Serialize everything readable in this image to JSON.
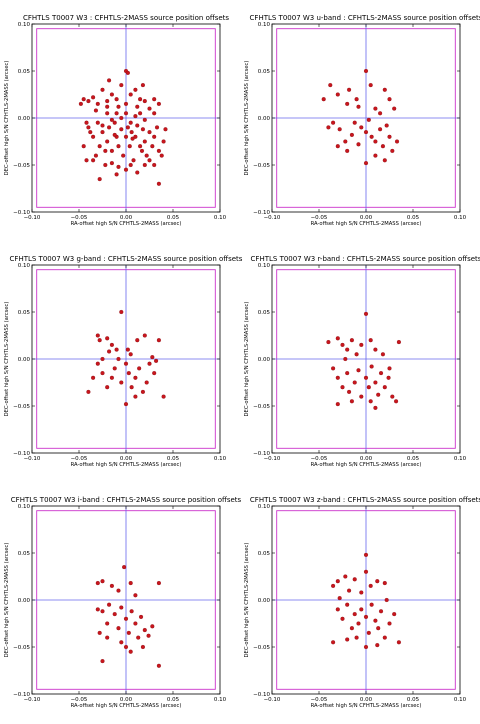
{
  "chart_data": [
    {
      "type": "scatter",
      "title": "CFHTLS T0007 W3 : CFHTLS-2MASS source position offsets",
      "xlabel": "RA-offset high S/N CFHTLS-2MASS (arcsec)",
      "ylabel": "DEC-offset high S/N CFHTLS-2MASS (arcsec)",
      "xlim": [
        -0.1,
        0.1
      ],
      "ylim": [
        -0.1,
        0.1
      ],
      "xticks": [
        "−0.10",
        "−0.05",
        "0.00",
        "0.05",
        "0.10"
      ],
      "yticks": [
        "−0.10",
        "−0.05",
        "0.00",
        "0.05",
        "0.10"
      ],
      "box": 0.095,
      "points": [
        [
          -0.045,
          0.02
        ],
        [
          -0.04,
          0.018
        ],
        [
          -0.035,
          0.022
        ],
        [
          -0.03,
          0.015
        ],
        [
          -0.025,
          0.03
        ],
        [
          -0.02,
          0.018
        ],
        [
          -0.02,
          0.012
        ],
        [
          -0.015,
          0.025
        ],
        [
          -0.01,
          0.02
        ],
        [
          -0.005,
          0.035
        ],
        [
          0.0,
          0.05
        ],
        [
          0.002,
          0.048
        ],
        [
          0.01,
          0.03
        ],
        [
          0.015,
          0.02
        ],
        [
          0.02,
          0.018
        ],
        [
          0.025,
          0.01
        ],
        [
          0.03,
          0.02
        ],
        [
          0.035,
          0.015
        ],
        [
          -0.04,
          -0.01
        ],
        [
          -0.035,
          -0.02
        ],
        [
          -0.03,
          -0.005
        ],
        [
          -0.028,
          -0.03
        ],
        [
          -0.025,
          -0.015
        ],
        [
          -0.02,
          -0.025
        ],
        [
          -0.018,
          -0.01
        ],
        [
          -0.015,
          -0.035
        ],
        [
          -0.012,
          -0.005
        ],
        [
          -0.01,
          -0.02
        ],
        [
          -0.008,
          -0.03
        ],
        [
          -0.005,
          -0.012
        ],
        [
          -0.003,
          -0.04
        ],
        [
          0.0,
          -0.02
        ],
        [
          0.002,
          -0.01
        ],
        [
          0.004,
          -0.03
        ],
        [
          0.006,
          -0.015
        ],
        [
          0.008,
          -0.045
        ],
        [
          0.01,
          -0.02
        ],
        [
          0.012,
          -0.008
        ],
        [
          0.015,
          -0.03
        ],
        [
          0.018,
          -0.012
        ],
        [
          0.02,
          -0.025
        ],
        [
          0.022,
          -0.04
        ],
        [
          0.025,
          -0.015
        ],
        [
          0.028,
          -0.03
        ],
        [
          0.03,
          -0.02
        ],
        [
          0.033,
          -0.01
        ],
        [
          0.035,
          -0.035
        ],
        [
          0.038,
          -0.04
        ],
        [
          -0.045,
          -0.03
        ],
        [
          -0.042,
          -0.045
        ],
        [
          -0.038,
          -0.015
        ],
        [
          -0.032,
          -0.04
        ],
        [
          -0.022,
          -0.05
        ],
        [
          -0.015,
          -0.048
        ],
        [
          -0.008,
          -0.052
        ],
        [
          0.0,
          -0.055
        ],
        [
          0.005,
          -0.05
        ],
        [
          0.012,
          -0.058
        ],
        [
          0.02,
          -0.05
        ],
        [
          0.03,
          -0.05
        ],
        [
          -0.028,
          -0.065
        ],
        [
          0.035,
          -0.07
        ],
        [
          -0.01,
          0.005
        ],
        [
          -0.005,
          0.0
        ],
        [
          0.0,
          0.005
        ],
        [
          0.005,
          -0.005
        ],
        [
          0.01,
          0.002
        ],
        [
          -0.015,
          -0.002
        ],
        [
          0.015,
          0.005
        ],
        [
          -0.02,
          0.005
        ],
        [
          0.02,
          -0.002
        ],
        [
          -0.025,
          -0.008
        ],
        [
          -0.012,
          -0.018
        ],
        [
          0.007,
          -0.022
        ],
        [
          0.017,
          -0.035
        ],
        [
          -0.022,
          -0.035
        ],
        [
          0.025,
          -0.045
        ],
        [
          -0.035,
          -0.045
        ],
        [
          0.0,
          0.015
        ],
        [
          0.005,
          0.025
        ],
        [
          -0.008,
          0.012
        ],
        [
          0.012,
          0.012
        ],
        [
          0.03,
          0.005
        ],
        [
          -0.032,
          0.008
        ],
        [
          0.04,
          -0.025
        ],
        [
          -0.042,
          -0.005
        ],
        [
          0.042,
          -0.012
        ],
        [
          -0.018,
          0.04
        ],
        [
          0.018,
          0.035
        ],
        [
          -0.048,
          0.015
        ],
        [
          -0.01,
          -0.06
        ]
      ]
    },
    {
      "type": "scatter",
      "title": "CFHTLS T0007 W3 u-band : CFHTLS-2MASS source position offsets",
      "xlabel": "RA-offset high S/N CFHTLS-2MASS (arcsec)",
      "ylabel": "DEC-offset high S/N CFHTLS-2MASS (arcsec)",
      "xlim": [
        -0.1,
        0.1
      ],
      "ylim": [
        -0.1,
        0.1
      ],
      "xticks": [
        "−0.10",
        "−0.05",
        "0.00",
        "0.05",
        "0.10"
      ],
      "yticks": [
        "−0.10",
        "−0.05",
        "0.00",
        "0.05",
        "0.10"
      ],
      "box": 0.095,
      "points": [
        [
          -0.045,
          0.02
        ],
        [
          -0.038,
          0.035
        ],
        [
          -0.03,
          0.025
        ],
        [
          -0.02,
          0.015
        ],
        [
          -0.018,
          0.03
        ],
        [
          -0.01,
          0.02
        ],
        [
          -0.008,
          0.012
        ],
        [
          0.0,
          0.05
        ],
        [
          0.005,
          0.035
        ],
        [
          0.01,
          0.01
        ],
        [
          0.015,
          0.005
        ],
        [
          0.02,
          0.03
        ],
        [
          0.025,
          0.02
        ],
        [
          0.03,
          0.01
        ],
        [
          -0.035,
          -0.005
        ],
        [
          -0.028,
          -0.012
        ],
        [
          -0.022,
          -0.025
        ],
        [
          -0.015,
          -0.018
        ],
        [
          -0.012,
          -0.005
        ],
        [
          -0.008,
          -0.028
        ],
        [
          -0.005,
          -0.01
        ],
        [
          0.0,
          -0.015
        ],
        [
          0.003,
          -0.002
        ],
        [
          0.006,
          -0.02
        ],
        [
          0.01,
          -0.025
        ],
        [
          0.015,
          -0.012
        ],
        [
          0.018,
          -0.03
        ],
        [
          0.022,
          -0.008
        ],
        [
          0.025,
          -0.02
        ],
        [
          0.028,
          -0.035
        ],
        [
          0.033,
          -0.025
        ],
        [
          -0.03,
          -0.03
        ],
        [
          -0.02,
          -0.035
        ],
        [
          0.0,
          -0.048
        ],
        [
          0.01,
          -0.04
        ],
        [
          0.02,
          -0.045
        ],
        [
          -0.04,
          -0.01
        ]
      ]
    },
    {
      "type": "scatter",
      "title": "CFHTLS T0007 W3 g-band : CFHTLS-2MASS source position offsets",
      "xlabel": "RA-offset high S/N CFHTLS-2MASS (arcsec)",
      "ylabel": "DEC-offset high S/N CFHTLS-2MASS (arcsec)",
      "xlim": [
        -0.1,
        0.1
      ],
      "ylim": [
        -0.1,
        0.1
      ],
      "xticks": [
        "−0.10",
        "−0.05",
        "0.00",
        "0.05",
        "0.10"
      ],
      "yticks": [
        "−0.10",
        "−0.05",
        "0.00",
        "0.05",
        "0.10"
      ],
      "box": 0.095,
      "points": [
        [
          -0.03,
          0.025
        ],
        [
          -0.028,
          0.02
        ],
        [
          -0.02,
          0.022
        ],
        [
          -0.015,
          0.015
        ],
        [
          -0.01,
          0.01
        ],
        [
          -0.005,
          0.05
        ],
        [
          0.002,
          0.01
        ],
        [
          0.005,
          0.005
        ],
        [
          0.012,
          0.02
        ],
        [
          0.02,
          0.025
        ],
        [
          0.035,
          0.02
        ],
        [
          -0.04,
          -0.035
        ],
        [
          -0.035,
          -0.02
        ],
        [
          -0.03,
          -0.005
        ],
        [
          -0.025,
          -0.015
        ],
        [
          -0.02,
          -0.03
        ],
        [
          -0.015,
          -0.02
        ],
        [
          -0.012,
          -0.01
        ],
        [
          -0.008,
          0.0
        ],
        [
          -0.005,
          -0.025
        ],
        [
          0.0,
          -0.005
        ],
        [
          0.003,
          -0.015
        ],
        [
          0.006,
          -0.03
        ],
        [
          0.01,
          -0.02
        ],
        [
          0.014,
          -0.01
        ],
        [
          0.018,
          -0.035
        ],
        [
          0.022,
          -0.025
        ],
        [
          0.025,
          -0.005
        ],
        [
          0.03,
          -0.015
        ],
        [
          0.04,
          -0.04
        ],
        [
          0.0,
          -0.048
        ],
        [
          0.01,
          -0.04
        ],
        [
          -0.025,
          0.0
        ],
        [
          0.028,
          0.002
        ],
        [
          0.032,
          -0.002
        ],
        [
          -0.018,
          0.008
        ]
      ]
    },
    {
      "type": "scatter",
      "title": "CFHTLS T0007 W3 r-band : CFHTLS-2MASS source position offsets",
      "xlabel": "RA-offset high S/N CFHTLS-2MASS (arcsec)",
      "ylabel": "DEC-offset high S/N CFHTLS-2MASS (arcsec)",
      "xlim": [
        -0.1,
        0.1
      ],
      "ylim": [
        -0.1,
        0.1
      ],
      "xticks": [
        "−0.10",
        "−0.05",
        "0.00",
        "0.05",
        "0.10"
      ],
      "yticks": [
        "−0.10",
        "−0.05",
        "0.00",
        "0.05",
        "0.10"
      ],
      "box": 0.095,
      "points": [
        [
          -0.04,
          0.018
        ],
        [
          -0.03,
          0.022
        ],
        [
          -0.025,
          0.015
        ],
        [
          -0.02,
          0.01
        ],
        [
          -0.015,
          0.02
        ],
        [
          -0.01,
          0.005
        ],
        [
          -0.005,
          0.015
        ],
        [
          0.0,
          0.048
        ],
        [
          0.005,
          0.02
        ],
        [
          0.01,
          0.01
        ],
        [
          0.018,
          0.005
        ],
        [
          0.035,
          0.018
        ],
        [
          -0.035,
          -0.01
        ],
        [
          -0.03,
          -0.02
        ],
        [
          -0.025,
          -0.03
        ],
        [
          -0.02,
          -0.015
        ],
        [
          -0.018,
          -0.035
        ],
        [
          -0.012,
          -0.025
        ],
        [
          -0.008,
          -0.012
        ],
        [
          -0.005,
          -0.04
        ],
        [
          0.0,
          -0.02
        ],
        [
          0.003,
          -0.03
        ],
        [
          0.006,
          -0.008
        ],
        [
          0.01,
          -0.025
        ],
        [
          0.013,
          -0.038
        ],
        [
          0.016,
          -0.015
        ],
        [
          0.02,
          -0.03
        ],
        [
          0.024,
          -0.02
        ],
        [
          0.028,
          -0.04
        ],
        [
          0.032,
          -0.045
        ],
        [
          -0.03,
          -0.048
        ],
        [
          0.01,
          -0.052
        ],
        [
          0.005,
          -0.045
        ],
        [
          -0.015,
          -0.045
        ],
        [
          0.025,
          -0.01
        ],
        [
          -0.022,
          0.0
        ]
      ]
    },
    {
      "type": "scatter",
      "title": "CFHTLS T0007 W3 i-band : CFHTLS-2MASS source position offsets",
      "xlabel": "RA-offset high S/N CFHTLS-2MASS (arcsec)",
      "ylabel": "DEC-offset high S/N CFHTLS-2MASS (arcsec)",
      "xlim": [
        -0.1,
        0.1
      ],
      "ylim": [
        -0.1,
        0.1
      ],
      "xticks": [
        "−0.10",
        "−0.05",
        "0.00",
        "0.05",
        "0.10"
      ],
      "yticks": [
        "−0.10",
        "−0.05",
        "0.00",
        "0.05",
        "0.10"
      ],
      "box": 0.095,
      "points": [
        [
          -0.03,
          0.018
        ],
        [
          -0.025,
          0.02
        ],
        [
          -0.015,
          0.015
        ],
        [
          -0.008,
          0.01
        ],
        [
          -0.002,
          0.035
        ],
        [
          0.005,
          0.018
        ],
        [
          0.01,
          0.005
        ],
        [
          0.035,
          0.018
        ],
        [
          -0.03,
          -0.01
        ],
        [
          -0.025,
          -0.012
        ],
        [
          -0.02,
          -0.025
        ],
        [
          -0.018,
          -0.005
        ],
        [
          -0.012,
          -0.015
        ],
        [
          -0.008,
          -0.03
        ],
        [
          -0.005,
          -0.008
        ],
        [
          0.0,
          -0.02
        ],
        [
          0.003,
          -0.035
        ],
        [
          0.006,
          -0.012
        ],
        [
          0.01,
          -0.025
        ],
        [
          0.013,
          -0.04
        ],
        [
          0.016,
          -0.018
        ],
        [
          0.02,
          -0.032
        ],
        [
          0.024,
          -0.038
        ],
        [
          0.028,
          -0.028
        ],
        [
          -0.028,
          -0.035
        ],
        [
          -0.02,
          -0.04
        ],
        [
          -0.005,
          -0.045
        ],
        [
          0.005,
          -0.055
        ],
        [
          0.0,
          -0.05
        ],
        [
          -0.025,
          -0.065
        ],
        [
          0.035,
          -0.07
        ],
        [
          0.018,
          -0.05
        ]
      ]
    },
    {
      "type": "scatter",
      "title": "CFHTLS T0007 W3 z-band : CFHTLS-2MASS source position offsets",
      "xlabel": "RA-offset high S/N CFHTLS-2MASS (arcsec)",
      "ylabel": "DEC-offset high S/N CFHTLS-2MASS (arcsec)",
      "xlim": [
        -0.1,
        0.1
      ],
      "ylim": [
        -0.1,
        0.1
      ],
      "xticks": [
        "−0.10",
        "−0.05",
        "0.00",
        "0.05",
        "0.10"
      ],
      "yticks": [
        "−0.10",
        "−0.05",
        "0.00",
        "0.05",
        "0.10"
      ],
      "box": 0.095,
      "points": [
        [
          -0.035,
          0.015
        ],
        [
          -0.03,
          0.02
        ],
        [
          -0.022,
          0.025
        ],
        [
          -0.018,
          0.01
        ],
        [
          -0.012,
          0.022
        ],
        [
          -0.005,
          0.008
        ],
        [
          0.0,
          0.048
        ],
        [
          0.0,
          0.03
        ],
        [
          0.005,
          0.015
        ],
        [
          0.012,
          0.02
        ],
        [
          0.02,
          0.018
        ],
        [
          -0.03,
          -0.01
        ],
        [
          -0.025,
          -0.02
        ],
        [
          -0.02,
          -0.005
        ],
        [
          -0.015,
          -0.03
        ],
        [
          -0.012,
          -0.015
        ],
        [
          -0.008,
          -0.025
        ],
        [
          -0.005,
          -0.01
        ],
        [
          0.0,
          -0.018
        ],
        [
          0.003,
          -0.035
        ],
        [
          0.006,
          -0.005
        ],
        [
          0.01,
          -0.022
        ],
        [
          0.013,
          -0.03
        ],
        [
          0.016,
          -0.012
        ],
        [
          0.02,
          -0.04
        ],
        [
          0.025,
          -0.025
        ],
        [
          0.03,
          -0.015
        ],
        [
          0.035,
          -0.045
        ],
        [
          -0.035,
          -0.045
        ],
        [
          -0.02,
          -0.042
        ],
        [
          0.0,
          -0.05
        ],
        [
          0.012,
          -0.048
        ],
        [
          -0.01,
          -0.04
        ],
        [
          0.022,
          0.0
        ],
        [
          -0.028,
          0.002
        ]
      ]
    }
  ]
}
